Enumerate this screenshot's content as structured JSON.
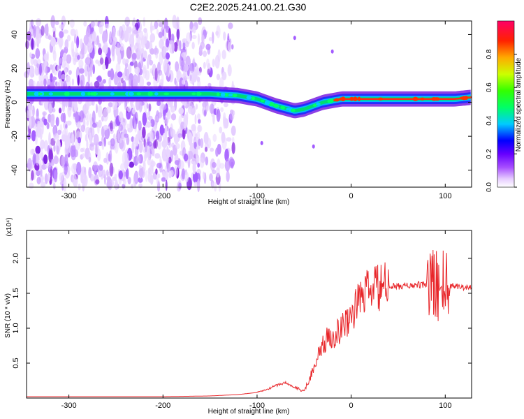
{
  "title": "C2E2.2025.241.00.21.G30",
  "chart_data": [
    {
      "type": "heatmap",
      "xlabel": "Height of straight line (km)",
      "ylabel": "Frequency (Hz)",
      "xlim": [
        -345,
        128
      ],
      "ylim": [
        -50,
        48
      ],
      "xticks": [
        -300,
        -200,
        -100,
        0,
        100
      ],
      "yticks": [
        -40,
        -20,
        0,
        20,
        40
      ],
      "colorbar": {
        "label": "Normalized spectral amplitude",
        "range": [
          0,
          1
        ],
        "ticks": [
          0.0,
          0.2,
          0.4,
          0.6,
          0.8
        ],
        "tick_labels": [
          "0.0",
          "0.2",
          "0.4",
          "0.6",
          "0.8"
        ]
      },
      "ridge_frequency_hz": {
        "x": [
          -345,
          -300,
          -200,
          -150,
          -120,
          -100,
          -80,
          -60,
          -50,
          -40,
          -30,
          -20,
          -10,
          0,
          20,
          40,
          60,
          80,
          100,
          110,
          128
        ],
        "y": [
          5,
          5,
          5,
          5,
          4,
          2,
          -2,
          -5,
          -4,
          -2,
          0,
          1,
          2,
          2,
          2,
          2,
          2,
          2,
          2,
          2,
          3
        ]
      }
    },
    {
      "type": "line",
      "xlabel": "Height of straight line (km)",
      "ylabel": "SNR (10 * v/v)",
      "y_multiplier": "(x10⁴)",
      "xlim": [
        -345,
        128
      ],
      "ylim": [
        0,
        2.4
      ],
      "xticks": [
        -300,
        -200,
        -100,
        0,
        100
      ],
      "yticks": [
        0.5,
        1.0,
        1.5,
        2.0
      ],
      "ytick_labels": [
        "0.5",
        "1.0",
        "1.5",
        "2.0"
      ],
      "color": "#e8262a",
      "series": [
        {
          "name": "SNR",
          "x": [
            -345,
            -300,
            -250,
            -200,
            -150,
            -120,
            -100,
            -90,
            -80,
            -70,
            -60,
            -50,
            -45,
            -40,
            -35,
            -30,
            -25,
            -20,
            -15,
            -10,
            -5,
            0,
            5,
            10,
            15,
            20,
            30,
            40,
            50,
            60,
            70,
            80,
            85,
            90,
            95,
            98,
            100,
            105,
            110,
            115,
            120,
            128
          ],
          "y": [
            0.02,
            0.02,
            0.02,
            0.02,
            0.03,
            0.05,
            0.08,
            0.12,
            0.18,
            0.22,
            0.15,
            0.1,
            0.25,
            0.45,
            0.6,
            0.75,
            0.85,
            0.9,
            0.95,
            1.0,
            1.1,
            1.2,
            1.3,
            1.45,
            1.5,
            1.55,
            1.58,
            1.6,
            1.6,
            1.61,
            1.62,
            1.62,
            1.63,
            1.6,
            1.7,
            1.65,
            1.55,
            1.6,
            1.62,
            1.6,
            1.58,
            1.6
          ]
        }
      ]
    }
  ]
}
